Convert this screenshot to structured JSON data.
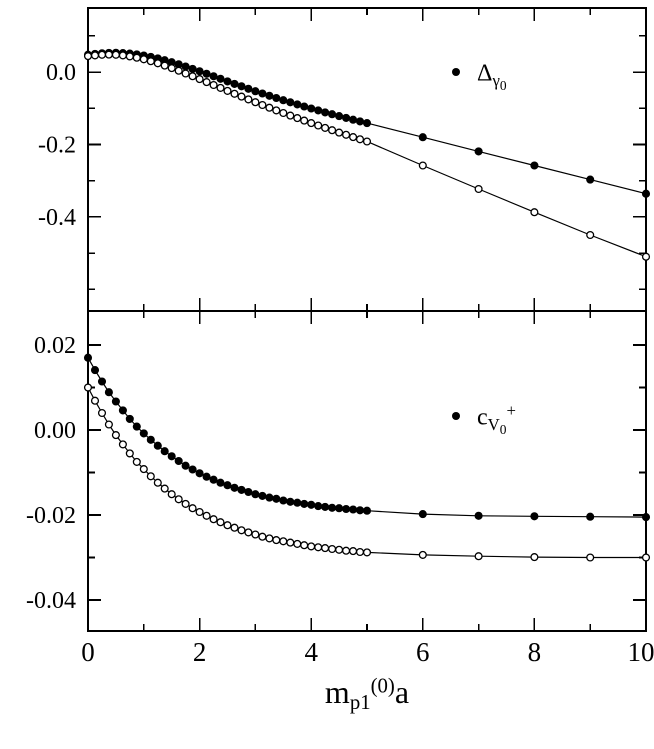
{
  "figure": {
    "background": "#ffffff",
    "axis_color": "#000000",
    "xlim": [
      0,
      10
    ],
    "x_major_ticks": [
      0,
      2,
      4,
      6,
      8,
      10
    ],
    "x_minor_ticks": [
      1,
      3,
      5,
      7,
      9
    ],
    "x_tick_labels": [
      "0",
      "2",
      "4",
      "6",
      "8",
      "10"
    ],
    "xlabel": {
      "base": "m",
      "sub": "p1",
      "sup": "(0)",
      "tail": "a"
    }
  },
  "chart_data": [
    {
      "type": "line",
      "panel": "top",
      "ylim": [
        -0.66,
        0.177
      ],
      "y_major_ticks": [
        0,
        -0.2,
        -0.4
      ],
      "y_tick_labels": [
        "0.0",
        "-0.2",
        "-0.4"
      ],
      "y_minor_ticks": [
        0.1,
        -0.1,
        -0.3,
        -0.5,
        -0.6
      ],
      "legend": {
        "marker": "filled-circle",
        "base": "Δ",
        "sub": "γ",
        "subsub": "0",
        "sup": ""
      },
      "x": [
        0,
        0.125,
        0.25,
        0.375,
        0.5,
        0.625,
        0.75,
        0.875,
        1,
        1.125,
        1.25,
        1.375,
        1.5,
        1.625,
        1.75,
        1.875,
        2,
        2.125,
        2.25,
        2.375,
        2.5,
        2.625,
        2.75,
        2.875,
        3,
        3.125,
        3.25,
        3.375,
        3.5,
        3.625,
        3.75,
        3.875,
        4,
        4.125,
        4.25,
        4.375,
        4.5,
        4.625,
        4.75,
        4.875,
        5,
        6,
        7,
        8,
        9,
        10
      ],
      "series": [
        {
          "name": "Delta-gamma0-filled",
          "marker": "filled-circle",
          "y": [
            0.048,
            0.0503,
            0.052,
            0.053,
            0.0532,
            0.0525,
            0.051,
            0.0487,
            0.0457,
            0.042,
            0.0377,
            0.0328,
            0.0274,
            0.0216,
            0.0154,
            0.0089,
            0.0022,
            -0.0047,
            -0.0117,
            -0.0187,
            -0.0257,
            -0.0326,
            -0.0394,
            -0.0461,
            -0.0527,
            -0.0591,
            -0.0654,
            -0.0716,
            -0.0776,
            -0.0835,
            -0.0893,
            -0.095,
            -0.1006,
            -0.106,
            -0.1113,
            -0.1165,
            -0.1216,
            -0.1266,
            -0.1315,
            -0.1363,
            -0.141,
            -0.18,
            -0.219,
            -0.258,
            -0.297,
            -0.336
          ]
        },
        {
          "name": "Delta-gamma0-open",
          "marker": "open-circle",
          "y": [
            0.044,
            0.0462,
            0.0477,
            0.0482,
            0.0477,
            0.046,
            0.0432,
            0.0396,
            0.0352,
            0.03,
            0.0242,
            0.0178,
            0.011,
            0.0038,
            -0.0038,
            -0.0115,
            -0.0195,
            -0.0276,
            -0.0357,
            -0.0438,
            -0.0519,
            -0.0599,
            -0.0678,
            -0.0756,
            -0.0833,
            -0.0909,
            -0.0984,
            -0.1058,
            -0.1131,
            -0.1202,
            -0.1272,
            -0.1341,
            -0.1409,
            -0.1476,
            -0.1542,
            -0.1607,
            -0.1671,
            -0.1734,
            -0.1796,
            -0.1857,
            -0.1917,
            -0.258,
            -0.323,
            -0.387,
            -0.45,
            -0.51
          ]
        }
      ]
    },
    {
      "type": "line",
      "panel": "bottom",
      "ylim": [
        -0.0473,
        0.028
      ],
      "y_major_ticks": [
        0.02,
        0,
        -0.02,
        -0.04
      ],
      "y_tick_labels": [
        "0.02",
        "0.00",
        "-0.02",
        "-0.04"
      ],
      "y_minor_ticks": [
        0.01,
        -0.01,
        -0.03
      ],
      "legend": {
        "marker": "filled-circle",
        "base": "c",
        "sub": "V",
        "subsub": "0",
        "sup": "+"
      },
      "x": [
        0,
        0.125,
        0.25,
        0.375,
        0.5,
        0.625,
        0.75,
        0.875,
        1,
        1.125,
        1.25,
        1.375,
        1.5,
        1.625,
        1.75,
        1.875,
        2,
        2.125,
        2.25,
        2.375,
        2.5,
        2.625,
        2.75,
        2.875,
        3,
        3.125,
        3.25,
        3.375,
        3.5,
        3.625,
        3.75,
        3.875,
        4,
        4.125,
        4.25,
        4.375,
        4.5,
        4.625,
        4.75,
        4.875,
        5,
        6,
        7,
        8,
        9,
        10
      ],
      "series": [
        {
          "name": "cV0plus-filled",
          "marker": "filled-circle",
          "y": [
            0.017,
            0.0141,
            0.0114,
            0.0089,
            0.0067,
            0.0046,
            0.0026,
            0.0008,
            -0.0008,
            -0.0023,
            -0.0037,
            -0.005,
            -0.0062,
            -0.0073,
            -0.0084,
            -0.0093,
            -0.0102,
            -0.011,
            -0.0117,
            -0.0124,
            -0.013,
            -0.0136,
            -0.0141,
            -0.0146,
            -0.0151,
            -0.0155,
            -0.0159,
            -0.0162,
            -0.0166,
            -0.0169,
            -0.0171,
            -0.0174,
            -0.0176,
            -0.0179,
            -0.0181,
            -0.0183,
            -0.0184,
            -0.0186,
            -0.0187,
            -0.0189,
            -0.019,
            -0.0198,
            -0.0202,
            -0.0203,
            -0.0204,
            -0.0205
          ]
        },
        {
          "name": "cV0plus-open",
          "marker": "open-circle",
          "y": [
            0.01,
            0.0069,
            0.004,
            0.0013,
            -0.0012,
            -0.0034,
            -0.0055,
            -0.0075,
            -0.0092,
            -0.0109,
            -0.0124,
            -0.0138,
            -0.0151,
            -0.0163,
            -0.0174,
            -0.0184,
            -0.0193,
            -0.0202,
            -0.021,
            -0.0217,
            -0.0224,
            -0.023,
            -0.0236,
            -0.0241,
            -0.0246,
            -0.0251,
            -0.0255,
            -0.0259,
            -0.0262,
            -0.0265,
            -0.0268,
            -0.0271,
            -0.0274,
            -0.0276,
            -0.0278,
            -0.028,
            -0.0282,
            -0.0284,
            -0.0285,
            -0.0287,
            -0.0288,
            -0.0294,
            -0.0297,
            -0.0299,
            -0.03,
            -0.03
          ]
        }
      ]
    }
  ]
}
